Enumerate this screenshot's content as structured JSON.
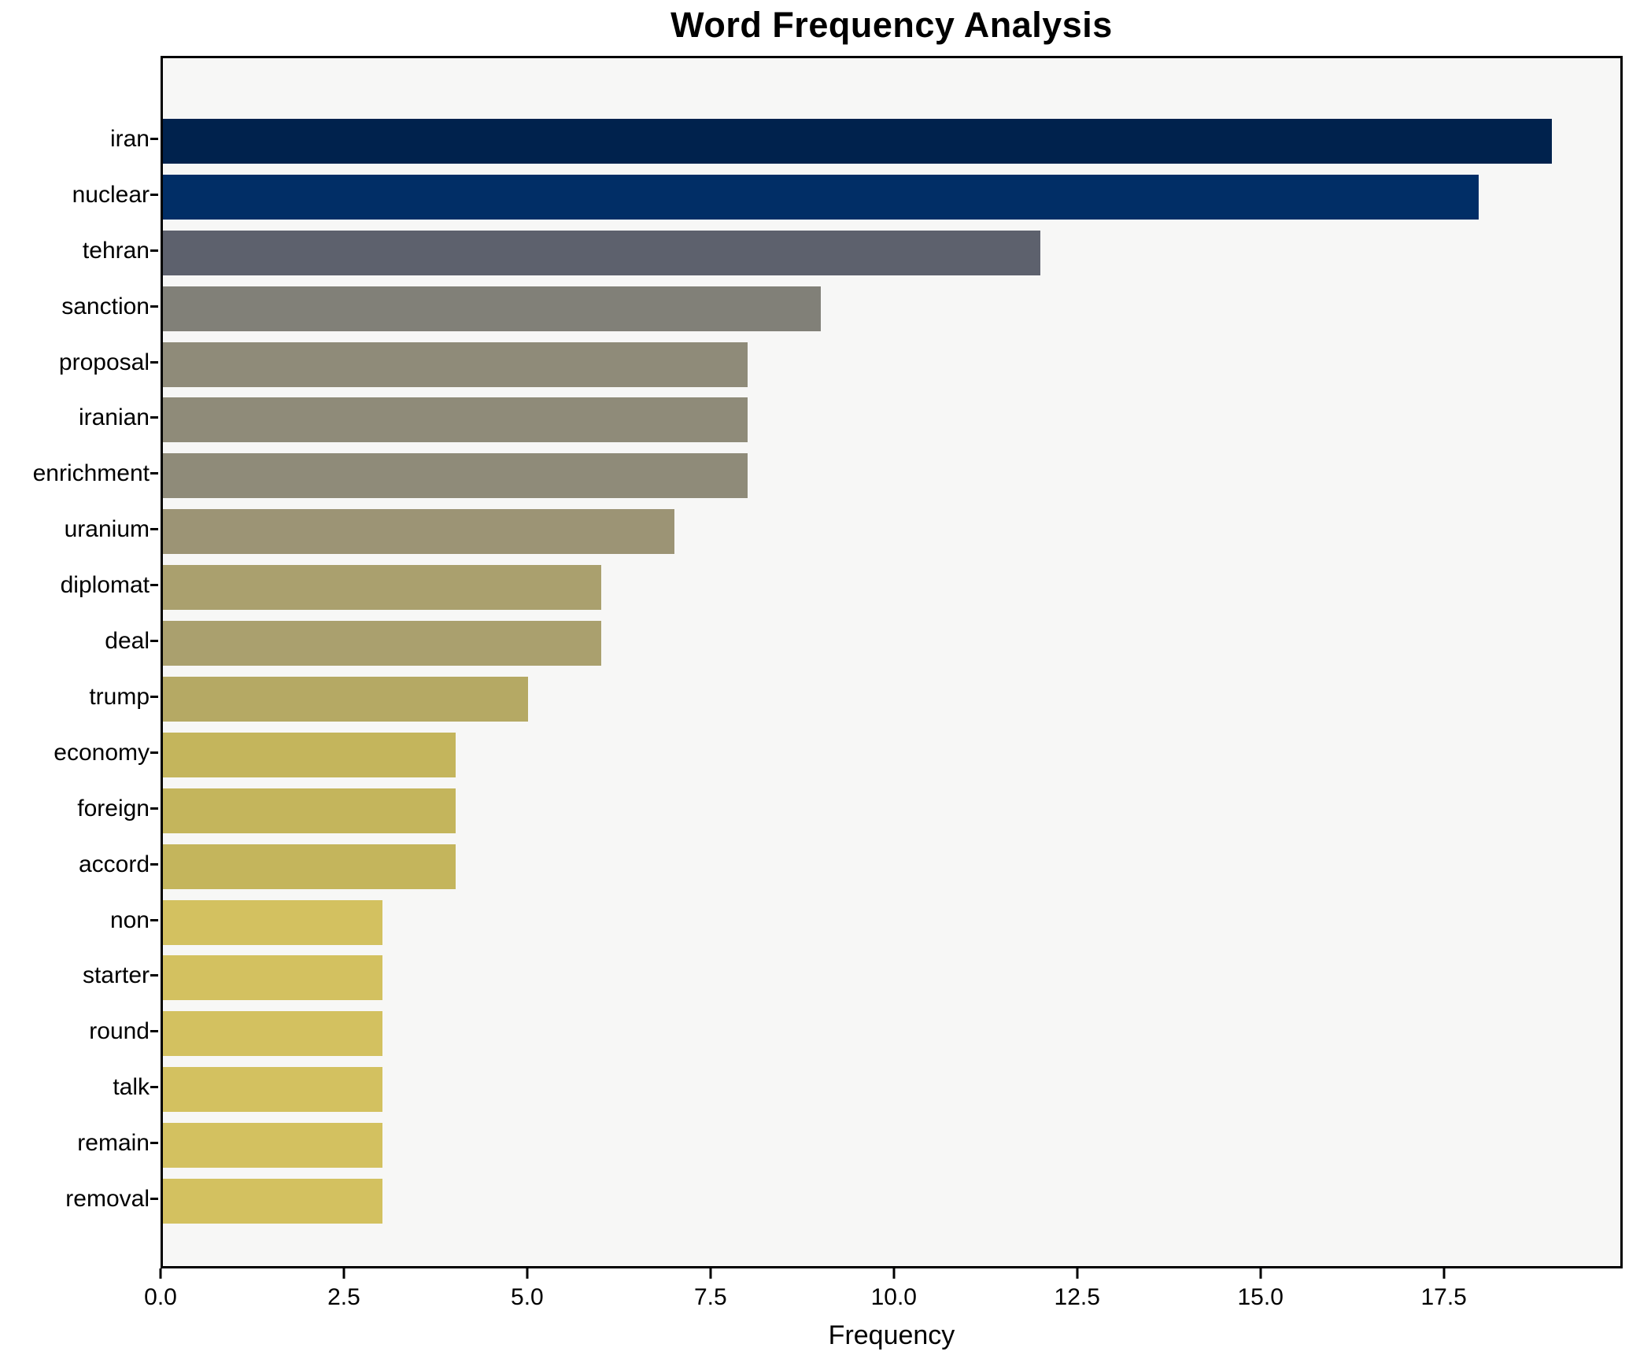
{
  "chart_data": {
    "type": "bar",
    "orientation": "horizontal",
    "title": "Word Frequency Analysis",
    "xlabel": "Frequency",
    "ylabel": "",
    "grid": false,
    "legend": false,
    "xlim": [
      0,
      19.94
    ],
    "xticks": [
      0.0,
      2.5,
      5.0,
      7.5,
      10.0,
      12.5,
      15.0,
      17.5
    ],
    "xtick_labels": [
      "0.0",
      "2.5",
      "5.0",
      "7.5",
      "10.0",
      "12.5",
      "15.0",
      "17.5"
    ],
    "categories": [
      "iran",
      "nuclear",
      "tehran",
      "sanction",
      "proposal",
      "iranian",
      "enrichment",
      "uranium",
      "diplomat",
      "deal",
      "trump",
      "economy",
      "foreign",
      "accord",
      "non",
      "starter",
      "round",
      "talk",
      "remain",
      "removal"
    ],
    "values": [
      19,
      18,
      12,
      9,
      8,
      8,
      8,
      7,
      6,
      6,
      5,
      4,
      4,
      4,
      3,
      3,
      3,
      3,
      3,
      3
    ],
    "bar_colors": [
      "#00224d",
      "#012e66",
      "#5d616d",
      "#818078",
      "#8f8b79",
      "#8f8b79",
      "#8f8b79",
      "#9c9475",
      "#aaa06e",
      "#aaa06e",
      "#b5a964",
      "#c4b55c",
      "#c4b55c",
      "#c4b55c",
      "#d3c160",
      "#d3c160",
      "#d3c160",
      "#d3c160",
      "#d3c160",
      "#d3c160"
    ]
  },
  "colors": {
    "figure_bg": "#ffffff",
    "axes_bg": "#f7f7f6",
    "spine": "#000000",
    "text": "#000000"
  }
}
